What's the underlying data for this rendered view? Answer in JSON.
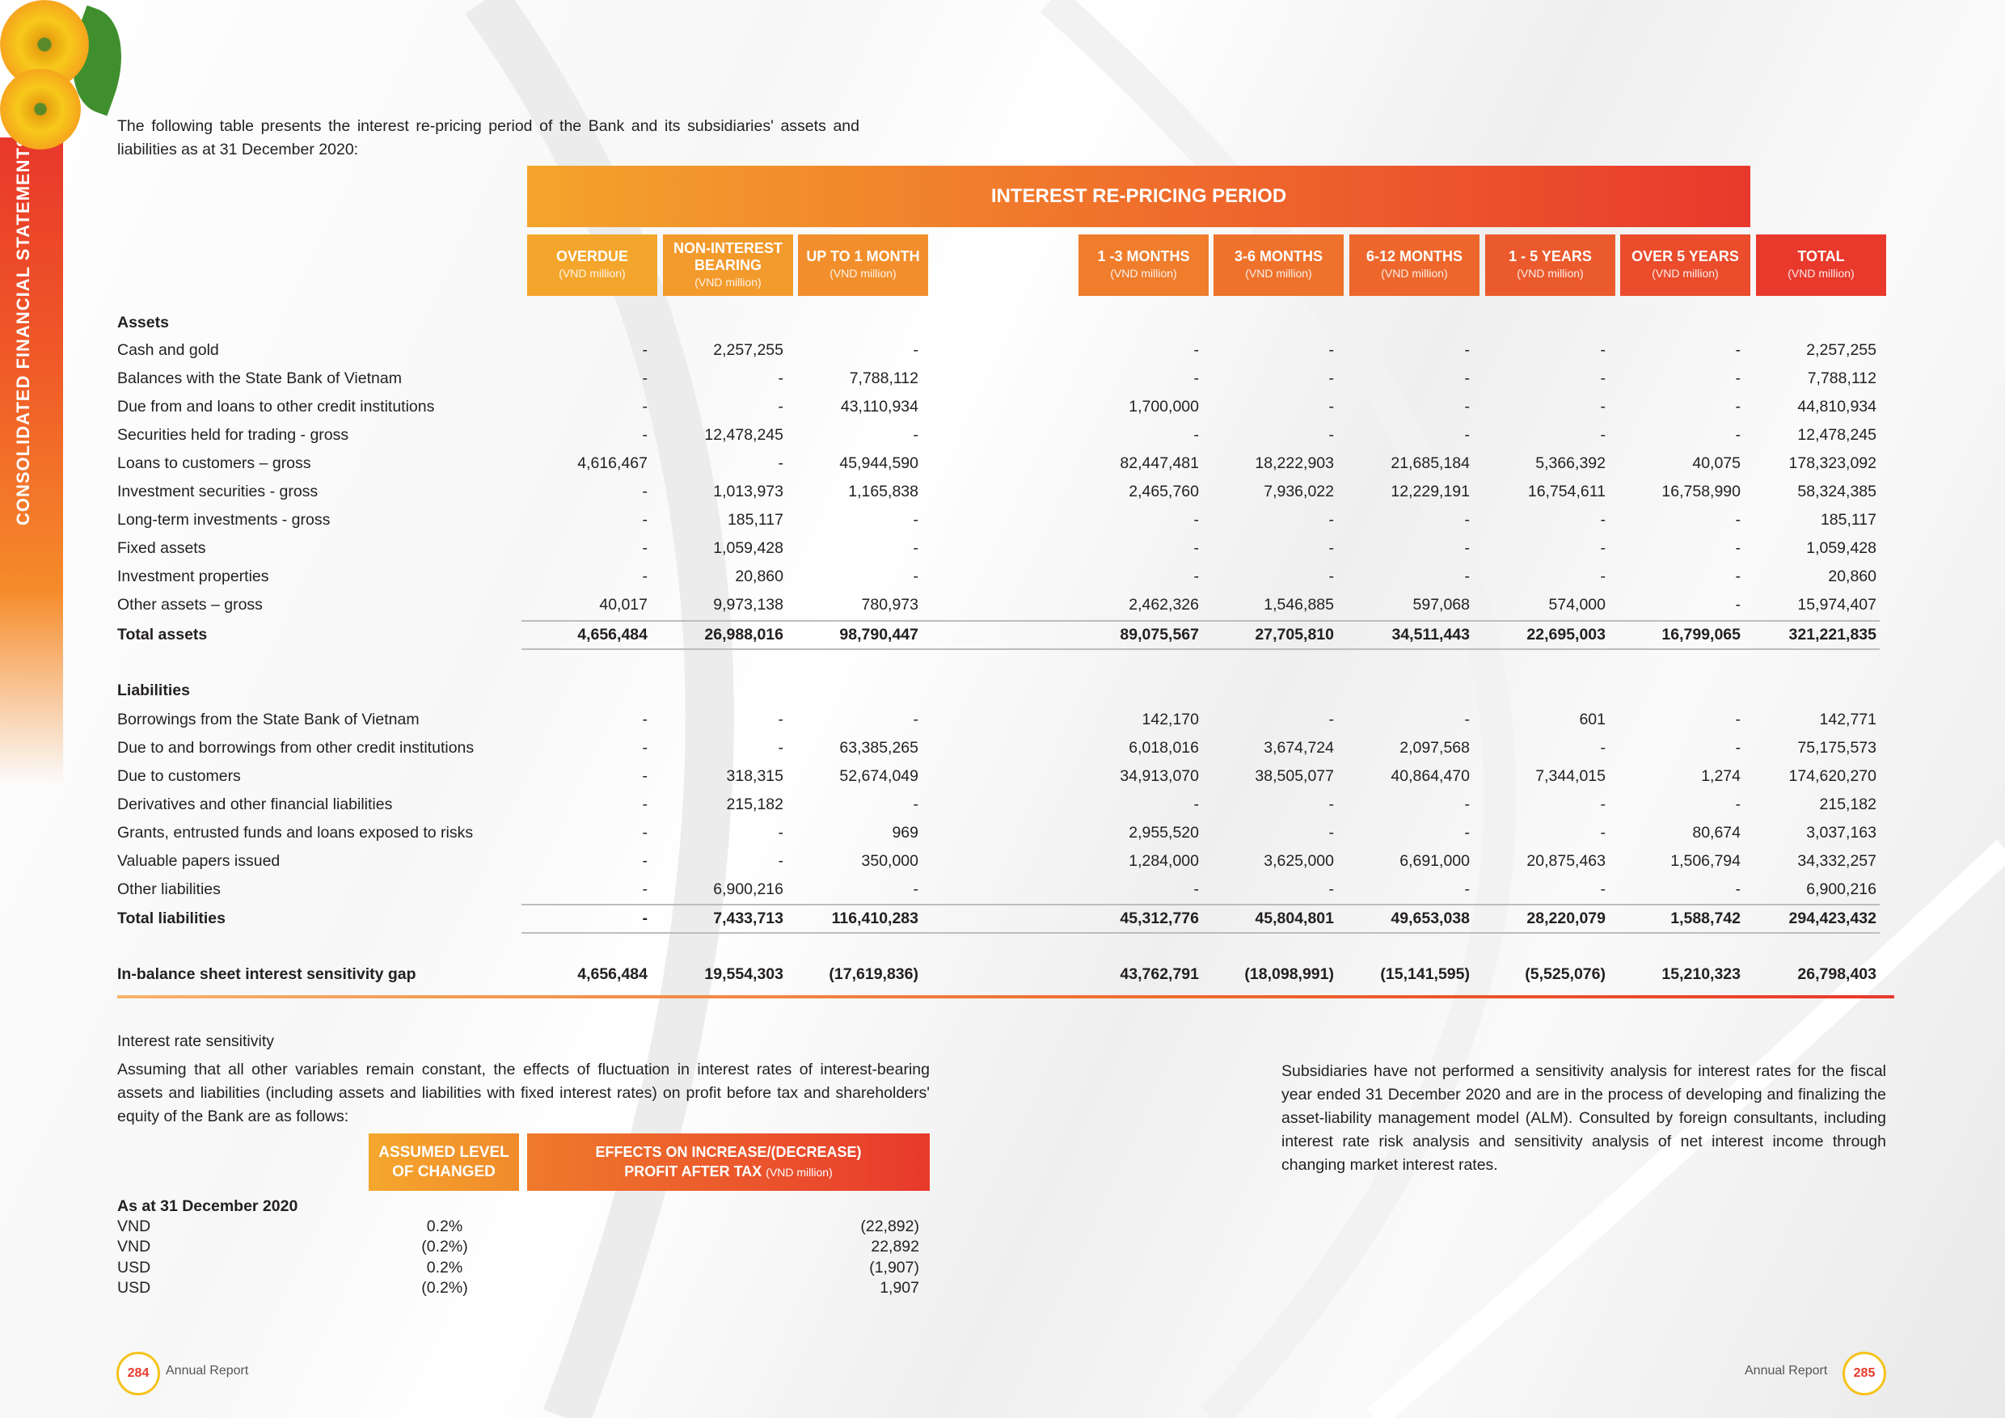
{
  "sidebar_title": "CONSOLIDATED FINANCIAL STATEMENTS",
  "intro": "The following table presents the interest re-pricing period of the Bank and its subsidiaries' assets and liabilities as at 31 December 2020:",
  "period_title": "INTEREST RE-PRICING PERIOD",
  "colors": {
    "accent_orange": "#f4a42c",
    "accent_red": "#e8392c"
  },
  "columns": [
    {
      "title": "OVERDUE",
      "unit": "(VND million)"
    },
    {
      "title": "NON-INTEREST BEARING",
      "unit": "(VND million)"
    },
    {
      "title": "UP TO 1 MONTH",
      "unit": "(VND million)"
    },
    {
      "title": "1 -3 MONTHS",
      "unit": "(VND million)"
    },
    {
      "title": "3-6 MONTHS",
      "unit": "(VND million)"
    },
    {
      "title": "6-12 MONTHS",
      "unit": "(VND million)"
    },
    {
      "title": "1 - 5 YEARS",
      "unit": "(VND million)"
    },
    {
      "title": "OVER 5 YEARS",
      "unit": "(VND million)"
    },
    {
      "title": "TOTAL",
      "unit": "(VND million)"
    }
  ],
  "assets": {
    "heading": "Assets",
    "rows": [
      {
        "label": "Cash and gold",
        "values": [
          "-",
          "2,257,255",
          "-",
          "-",
          "-",
          "-",
          "-",
          "-",
          "2,257,255"
        ]
      },
      {
        "label": "Balances with the State Bank of Vietnam",
        "values": [
          "-",
          "-",
          "7,788,112",
          "-",
          "-",
          "-",
          "-",
          "-",
          "7,788,112"
        ]
      },
      {
        "label": "Due from and loans to other credit institutions",
        "values": [
          "-",
          "-",
          "43,110,934",
          "1,700,000",
          "-",
          "-",
          "-",
          "-",
          "44,810,934"
        ]
      },
      {
        "label": "Securities held for trading - gross",
        "values": [
          "-",
          "12,478,245",
          "-",
          "-",
          "-",
          "-",
          "-",
          "-",
          "12,478,245"
        ]
      },
      {
        "label": "Loans to customers – gross",
        "values": [
          "4,616,467",
          "-",
          "45,944,590",
          "82,447,481",
          "18,222,903",
          "21,685,184",
          "5,366,392",
          "40,075",
          "178,323,092"
        ]
      },
      {
        "label": "Investment securities - gross",
        "values": [
          "-",
          "1,013,973",
          "1,165,838",
          "2,465,760",
          "7,936,022",
          "12,229,191",
          "16,754,611",
          "16,758,990",
          "58,324,385"
        ]
      },
      {
        "label": "Long-term investments - gross",
        "values": [
          "-",
          "185,117",
          "-",
          "-",
          "-",
          "-",
          "-",
          "-",
          "185,117"
        ]
      },
      {
        "label": "Fixed assets",
        "values": [
          "-",
          "1,059,428",
          "-",
          "-",
          "-",
          "-",
          "-",
          "-",
          "1,059,428"
        ]
      },
      {
        "label": "Investment properties",
        "values": [
          "-",
          "20,860",
          "-",
          "-",
          "-",
          "-",
          "-",
          "-",
          "20,860"
        ]
      },
      {
        "label": "Other assets – gross",
        "values": [
          "40,017",
          "9,973,138",
          "780,973",
          "2,462,326",
          "1,546,885",
          "597,068",
          "574,000",
          "-",
          "15,974,407"
        ]
      }
    ],
    "total": {
      "label": "Total assets",
      "values": [
        "4,656,484",
        "26,988,016",
        "98,790,447",
        "89,075,567",
        "27,705,810",
        "34,511,443",
        "22,695,003",
        "16,799,065",
        "321,221,835"
      ]
    }
  },
  "liabilities": {
    "heading": "Liabilities",
    "rows": [
      {
        "label": "Borrowings from the State Bank of Vietnam",
        "values": [
          "-",
          "-",
          "-",
          "142,170",
          "-",
          "-",
          "601",
          "-",
          "142,771"
        ]
      },
      {
        "label": "Due to and borrowings from other credit institutions",
        "values": [
          "-",
          "-",
          "63,385,265",
          "6,018,016",
          "3,674,724",
          "2,097,568",
          "-",
          "-",
          "75,175,573"
        ]
      },
      {
        "label": "Due to customers",
        "values": [
          "-",
          "318,315",
          "52,674,049",
          "34,913,070",
          "38,505,077",
          "40,864,470",
          "7,344,015",
          "1,274",
          "174,620,270"
        ]
      },
      {
        "label": "Derivatives and other financial liabilities",
        "values": [
          "-",
          "215,182",
          "-",
          "-",
          "-",
          "-",
          "-",
          "-",
          "215,182"
        ]
      },
      {
        "label": "Grants, entrusted funds and loans exposed to risks",
        "values": [
          "-",
          "-",
          "969",
          "2,955,520",
          "-",
          "-",
          "-",
          "80,674",
          "3,037,163"
        ]
      },
      {
        "label": "Valuable papers issued",
        "values": [
          "-",
          "-",
          "350,000",
          "1,284,000",
          "3,625,000",
          "6,691,000",
          "20,875,463",
          "1,506,794",
          "34,332,257"
        ]
      },
      {
        "label": "Other liabilities",
        "values": [
          "-",
          "6,900,216",
          "-",
          "-",
          "-",
          "-",
          "-",
          "-",
          "6,900,216"
        ]
      }
    ],
    "total": {
      "label": "Total liabilities",
      "values": [
        "-",
        "7,433,713",
        "116,410,283",
        "45,312,776",
        "45,804,801",
        "49,653,038",
        "28,220,079",
        "1,588,742",
        "294,423,432"
      ]
    }
  },
  "gap": {
    "label": "In-balance sheet interest sensitivity gap",
    "values": [
      "4,656,484",
      "19,554,303",
      "(17,619,836)",
      "43,762,791",
      "(18,098,991)",
      "(15,141,595)",
      "(5,525,076)",
      "15,210,323",
      "26,798,403"
    ]
  },
  "sensitivity": {
    "heading": "Interest rate sensitivity",
    "paragraph": "Assuming that all other variables remain constant, the effects of fluctuation in interest rates of interest-bearing assets and liabilities (including assets and liabilities with fixed interest rates) on profit before tax and shareholders' equity of the Bank are as follows:",
    "col1": "ASSUMED LEVEL OF CHANGED",
    "col2": "EFFECTS ON INCREASE/(DECREASE) PROFIT AFTER TAX",
    "col2_unit": "(VND million)",
    "as_at": "As at 31 December 2020",
    "rows": [
      {
        "currency": "VND",
        "level": "0.2%",
        "effect": "(22,892)"
      },
      {
        "currency": "VND",
        "level": "(0.2%)",
        "effect": "22,892"
      },
      {
        "currency": "USD",
        "level": "0.2%",
        "effect": "(1,907)"
      },
      {
        "currency": "USD",
        "level": "(0.2%)",
        "effect": "1,907"
      }
    ]
  },
  "right_paragraph": "Subsidiaries have not performed a sensitivity analysis for interest rates for the fiscal year ended 31 December 2020 and are in the process of developing and finalizing the asset-liability management model (ALM). Consulted by foreign consultants, including interest rate risk analysis and sensitivity analysis of net interest income through changing market interest rates.",
  "footer": {
    "left_page": "284",
    "right_page": "285",
    "label": "Annual Report"
  }
}
